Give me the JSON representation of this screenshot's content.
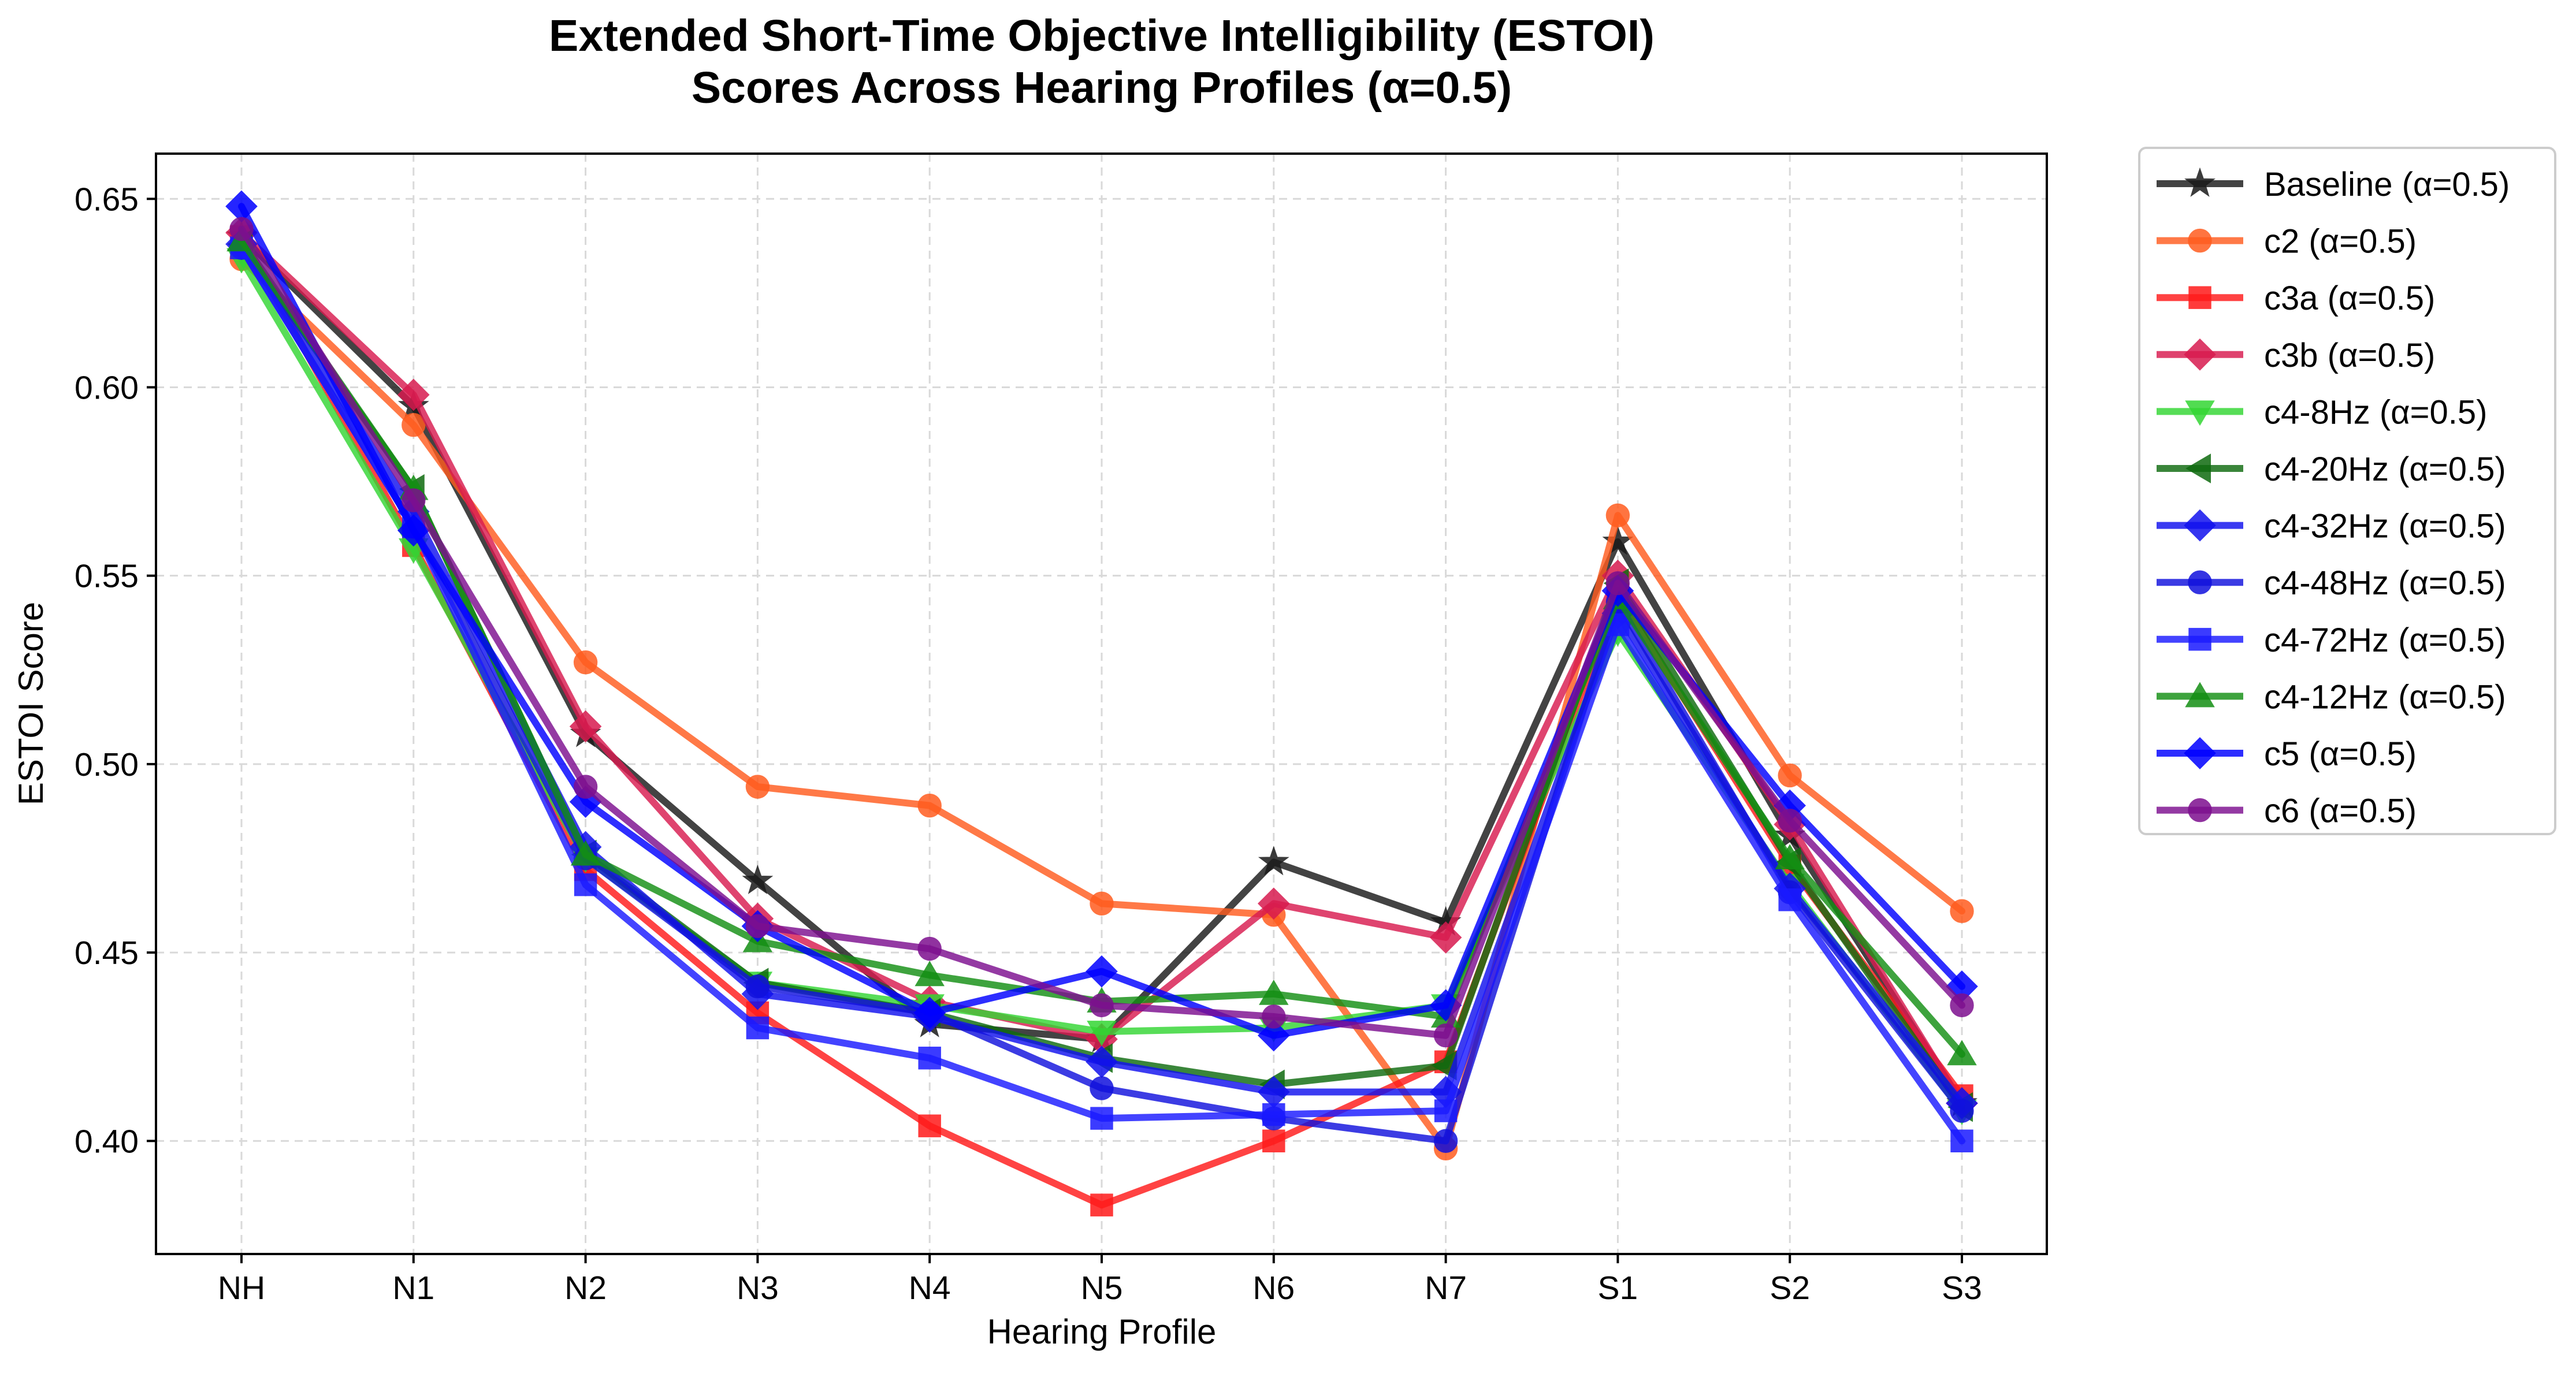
{
  "chart_data": {
    "type": "line",
    "title_line1": "Extended Short-Time Objective Intelligibility (ESTOI)",
    "title_line2": "Scores Across Hearing Profiles (α=0.5)",
    "xlabel": "Hearing Profile",
    "ylabel": "ESTOI Score",
    "categories": [
      "NH",
      "N1",
      "N2",
      "N3",
      "N4",
      "N5",
      "N6",
      "N7",
      "S1",
      "S2",
      "S3"
    ],
    "ylim": [
      0.37,
      0.662
    ],
    "yticks": [
      0.4,
      0.45,
      0.5,
      0.55,
      0.6,
      0.65
    ],
    "ytick_labels": [
      "0.40",
      "0.45",
      "0.50",
      "0.55",
      "0.60",
      "0.65"
    ],
    "grid": true,
    "legend_position": "outside-right",
    "series": [
      {
        "name": "Baseline (α=0.5)",
        "color": "#1a1a1a",
        "marker": "star",
        "values": [
          0.64,
          0.595,
          0.508,
          0.469,
          0.431,
          0.427,
          0.474,
          0.458,
          0.559,
          0.481,
          0.41
        ]
      },
      {
        "name": "c2 (α=0.5)",
        "color": "#ff5c1f",
        "marker": "circle",
        "values": [
          0.634,
          0.59,
          0.527,
          0.494,
          0.489,
          0.463,
          0.46,
          0.398,
          0.566,
          0.497,
          0.461
        ]
      },
      {
        "name": "c3a (α=0.5)",
        "color": "#ff1a1a",
        "marker": "square",
        "values": [
          0.64,
          0.558,
          0.472,
          0.434,
          0.404,
          0.383,
          0.4,
          0.421,
          0.545,
          0.473,
          0.412
        ]
      },
      {
        "name": "c3b (α=0.5)",
        "color": "#d81b4f",
        "marker": "diamond",
        "values": [
          0.641,
          0.598,
          0.51,
          0.459,
          0.437,
          0.427,
          0.463,
          0.454,
          0.55,
          0.484,
          0.41
        ]
      },
      {
        "name": "c4-8Hz (α=0.5)",
        "color": "#33d633",
        "marker": "triangle-down",
        "values": [
          0.634,
          0.557,
          0.475,
          0.442,
          0.436,
          0.429,
          0.43,
          0.436,
          0.535,
          0.468,
          0.408
        ]
      },
      {
        "name": "c4-20Hz (α=0.5)",
        "color": "#0f6b0f",
        "marker": "triangle-left",
        "values": [
          0.638,
          0.573,
          0.476,
          0.442,
          0.434,
          0.422,
          0.415,
          0.42,
          0.548,
          0.474,
          0.409
        ]
      },
      {
        "name": "c4-32Hz (α=0.5)",
        "color": "#1111ee",
        "marker": "diamond",
        "values": [
          0.638,
          0.567,
          0.478,
          0.439,
          0.433,
          0.421,
          0.413,
          0.413,
          0.54,
          0.467,
          0.41
        ]
      },
      {
        "name": "c4-48Hz (α=0.5)",
        "color": "#1111dd",
        "marker": "circle",
        "values": [
          0.637,
          0.563,
          0.475,
          0.441,
          0.434,
          0.414,
          0.406,
          0.4,
          0.543,
          0.466,
          0.408
        ]
      },
      {
        "name": "c4-72Hz (α=0.5)",
        "color": "#1a1aff",
        "marker": "square",
        "values": [
          0.637,
          0.563,
          0.468,
          0.43,
          0.422,
          0.406,
          0.407,
          0.408,
          0.537,
          0.464,
          0.4
        ]
      },
      {
        "name": "c4-12Hz (α=0.5)",
        "color": "#138f13",
        "marker": "triangle-up",
        "values": [
          0.639,
          0.573,
          0.476,
          0.453,
          0.444,
          0.437,
          0.439,
          0.433,
          0.544,
          0.475,
          0.423
        ]
      },
      {
        "name": "c5 (α=0.5)",
        "color": "#0000ff",
        "marker": "diamond",
        "values": [
          0.648,
          0.562,
          0.49,
          0.457,
          0.434,
          0.445,
          0.428,
          0.436,
          0.546,
          0.489,
          0.441
        ]
      },
      {
        "name": "c6 (α=0.5)",
        "color": "#7d0f8f",
        "marker": "circle",
        "values": [
          0.642,
          0.57,
          0.494,
          0.457,
          0.451,
          0.436,
          0.433,
          0.428,
          0.548,
          0.485,
          0.436
        ]
      }
    ]
  }
}
